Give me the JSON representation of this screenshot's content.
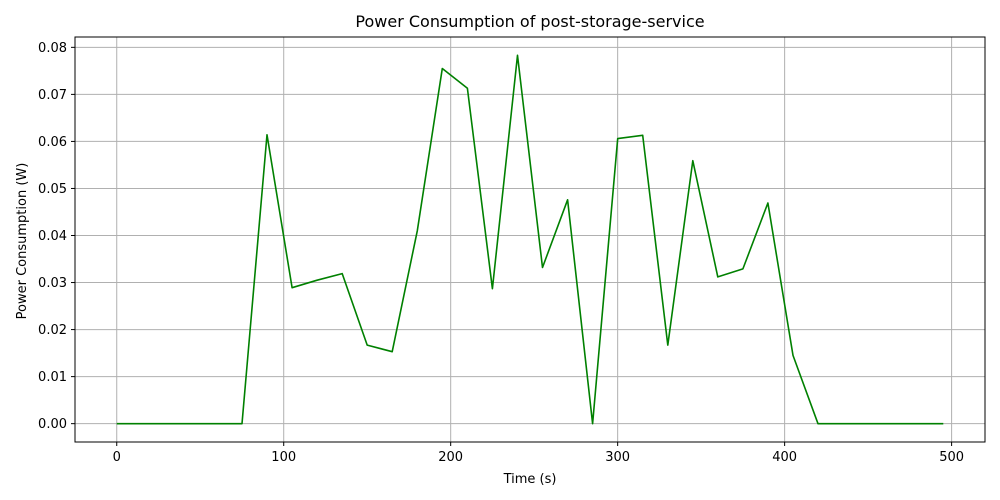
{
  "chart_data": {
    "type": "line",
    "title": "Power Consumption of post-storage-service",
    "xlabel": "Time (s)",
    "ylabel": "Power Consumption (W)",
    "xlim": [
      -25.0,
      520.0
    ],
    "ylim": [
      -0.0039,
      0.0822
    ],
    "xticks": [
      0,
      100,
      200,
      300,
      400,
      500
    ],
    "yticks": [
      0.0,
      0.01,
      0.02,
      0.03,
      0.04,
      0.05,
      0.06,
      0.07,
      0.08
    ],
    "ytick_format": "2dp",
    "grid": true,
    "line_color": "#008000",
    "series": [
      {
        "x": [
          0,
          15,
          30,
          45,
          60,
          75,
          90,
          105,
          120,
          135,
          150,
          165,
          180,
          195,
          210,
          225,
          240,
          255,
          270,
          285,
          300,
          315,
          330,
          345,
          360,
          375,
          390,
          405,
          420,
          435,
          450,
          465,
          480,
          495
        ],
        "values": [
          0,
          0,
          0,
          0,
          0,
          0,
          0.0614,
          0.0289,
          0.0305,
          0.0319,
          0.0167,
          0.0153,
          0.041,
          0.0755,
          0.0713,
          0.0287,
          0.0783,
          0.0332,
          0.0476,
          0.0,
          0.0606,
          0.0613,
          0.0167,
          0.0559,
          0.0312,
          0.0329,
          0.0469,
          0.0145,
          0,
          0,
          0,
          0,
          0,
          0
        ]
      }
    ]
  }
}
